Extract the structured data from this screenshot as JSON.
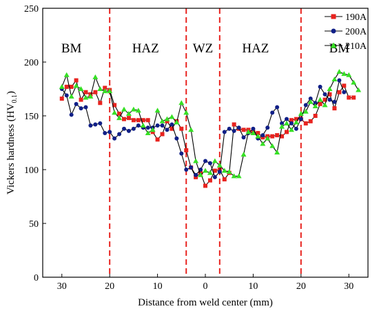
{
  "chart_data": {
    "type": "line",
    "xlabel": "Distance from weld center (mm)",
    "ylabel_main": "Vickers hardness (HV",
    "ylabel_sub": "0.1",
    "ylabel_close": ")",
    "x_domain": [
      -34,
      34
    ],
    "ylim": [
      0,
      250
    ],
    "x_ticks": [
      -30,
      -20,
      -10,
      0,
      10,
      20,
      30
    ],
    "x_tick_labels": [
      "30",
      "20",
      "10",
      "0",
      "10",
      "20",
      "30"
    ],
    "y_ticks": [
      0,
      50,
      100,
      150,
      200,
      250
    ],
    "y_tick_labels": [
      "0",
      "50",
      "100",
      "150",
      "200",
      "250"
    ],
    "boundaries": [
      -20,
      -4,
      3,
      20
    ],
    "boundary_color": "#e8231f",
    "regions": [
      {
        "label": "BM",
        "x": -28
      },
      {
        "label": "HAZ",
        "x": -12.5
      },
      {
        "label": "WZ",
        "x": -0.5
      },
      {
        "label": "HAZ",
        "x": 10.5
      },
      {
        "label": "BM",
        "x": 28
      }
    ],
    "legend_position": "top-right",
    "series": [
      {
        "name": "190A",
        "color": "#e8231f",
        "marker": "square",
        "points": [
          [
            -30,
            166
          ],
          [
            -29,
            177
          ],
          [
            -28,
            177
          ],
          [
            -27,
            183
          ],
          [
            -26,
            165
          ],
          [
            -25,
            172
          ],
          [
            -24,
            170
          ],
          [
            -23,
            172
          ],
          [
            -22,
            162
          ],
          [
            -21,
            176
          ],
          [
            -20,
            174
          ],
          [
            -19,
            160
          ],
          [
            -18,
            152
          ],
          [
            -17,
            147
          ],
          [
            -16,
            148
          ],
          [
            -15,
            146
          ],
          [
            -14,
            146
          ],
          [
            -13,
            146
          ],
          [
            -12,
            146
          ],
          [
            -11,
            135
          ],
          [
            -10,
            128
          ],
          [
            -9,
            133
          ],
          [
            -8,
            145
          ],
          [
            -7,
            138
          ],
          [
            -6,
            145
          ],
          [
            -5,
            138
          ],
          [
            -4,
            118
          ],
          [
            -3,
            102
          ],
          [
            -2,
            93
          ],
          [
            -1,
            97
          ],
          [
            0,
            85
          ],
          [
            1,
            90
          ],
          [
            2,
            99
          ],
          [
            3,
            100
          ],
          [
            4,
            91
          ],
          [
            5,
            97
          ],
          [
            6,
            142
          ],
          [
            7,
            138
          ],
          [
            8,
            137
          ],
          [
            9,
            137
          ],
          [
            10,
            135
          ],
          [
            11,
            134
          ],
          [
            12,
            130
          ],
          [
            13,
            131
          ],
          [
            14,
            131
          ],
          [
            15,
            132
          ],
          [
            16,
            131
          ],
          [
            17,
            135
          ],
          [
            18,
            146
          ],
          [
            19,
            147
          ],
          [
            20,
            147
          ],
          [
            21,
            143
          ],
          [
            22,
            145
          ],
          [
            23,
            150
          ],
          [
            24,
            161
          ],
          [
            25,
            165
          ],
          [
            26,
            170
          ],
          [
            27,
            157
          ],
          [
            28,
            172
          ],
          [
            29,
            178
          ],
          [
            30,
            167
          ],
          [
            31,
            167
          ]
        ]
      },
      {
        "name": "200A",
        "color": "#101f87",
        "marker": "circle",
        "points": [
          [
            -30,
            175
          ],
          [
            -29,
            169
          ],
          [
            -28,
            151
          ],
          [
            -27,
            161
          ],
          [
            -26,
            157
          ],
          [
            -25,
            158
          ],
          [
            -24,
            141
          ],
          [
            -23,
            142
          ],
          [
            -22,
            143
          ],
          [
            -21,
            134
          ],
          [
            -20,
            135
          ],
          [
            -19,
            129
          ],
          [
            -18,
            133
          ],
          [
            -17,
            138
          ],
          [
            -16,
            136
          ],
          [
            -15,
            138
          ],
          [
            -14,
            141
          ],
          [
            -13,
            139
          ],
          [
            -12,
            139
          ],
          [
            -11,
            139
          ],
          [
            -10,
            141
          ],
          [
            -9,
            141
          ],
          [
            -8,
            137
          ],
          [
            -7,
            142
          ],
          [
            -6,
            129
          ],
          [
            -5,
            115
          ],
          [
            -4,
            100
          ],
          [
            -3,
            102
          ],
          [
            -2,
            95
          ],
          [
            -1,
            100
          ],
          [
            0,
            108
          ],
          [
            1,
            106
          ],
          [
            2,
            93
          ],
          [
            3,
            98
          ],
          [
            4,
            135
          ],
          [
            5,
            138
          ],
          [
            6,
            136
          ],
          [
            7,
            139
          ],
          [
            8,
            130
          ],
          [
            9,
            134
          ],
          [
            10,
            138
          ],
          [
            11,
            129
          ],
          [
            12,
            132
          ],
          [
            13,
            139
          ],
          [
            14,
            153
          ],
          [
            15,
            158
          ],
          [
            16,
            143
          ],
          [
            17,
            147
          ],
          [
            18,
            143
          ],
          [
            19,
            138
          ],
          [
            20,
            147
          ],
          [
            21,
            160
          ],
          [
            22,
            166
          ],
          [
            23,
            162
          ],
          [
            24,
            177
          ],
          [
            25,
            170
          ],
          [
            26,
            165
          ],
          [
            27,
            163
          ],
          [
            28,
            183
          ],
          [
            29,
            172
          ]
        ]
      },
      {
        "name": "210A",
        "color": "#36e024",
        "marker": "triangle",
        "points": [
          [
            -30,
            177
          ],
          [
            -29,
            188
          ],
          [
            -28,
            168
          ],
          [
            -27,
            178
          ],
          [
            -26,
            175
          ],
          [
            -25,
            167
          ],
          [
            -24,
            168
          ],
          [
            -23,
            186
          ],
          [
            -22,
            175
          ],
          [
            -21,
            173
          ],
          [
            -20,
            173
          ],
          [
            -19,
            153
          ],
          [
            -18,
            148
          ],
          [
            -17,
            156
          ],
          [
            -16,
            152
          ],
          [
            -15,
            156
          ],
          [
            -14,
            155
          ],
          [
            -13,
            141
          ],
          [
            -12,
            134
          ],
          [
            -11,
            137
          ],
          [
            -10,
            155
          ],
          [
            -9,
            145
          ],
          [
            -8,
            147
          ],
          [
            -7,
            149
          ],
          [
            -6,
            144
          ],
          [
            -5,
            162
          ],
          [
            -4,
            153
          ],
          [
            -3,
            137
          ],
          [
            -2,
            108
          ],
          [
            -1,
            95
          ],
          [
            0,
            99
          ],
          [
            1,
            97
          ],
          [
            2,
            108
          ],
          [
            3,
            104
          ],
          [
            4,
            99
          ],
          [
            5,
            98
          ],
          [
            6,
            94
          ],
          [
            7,
            94
          ],
          [
            8,
            114
          ],
          [
            9,
            135
          ],
          [
            10,
            134
          ],
          [
            11,
            131
          ],
          [
            12,
            124
          ],
          [
            13,
            129
          ],
          [
            14,
            122
          ],
          [
            15,
            116
          ],
          [
            16,
            140
          ],
          [
            17,
            143
          ],
          [
            18,
            137
          ],
          [
            19,
            144
          ],
          [
            20,
            152
          ],
          [
            21,
            154
          ],
          [
            22,
            163
          ],
          [
            23,
            159
          ],
          [
            24,
            165
          ],
          [
            25,
            160
          ],
          [
            26,
            175
          ],
          [
            27,
            184
          ],
          [
            28,
            191
          ],
          [
            29,
            189
          ],
          [
            30,
            188
          ],
          [
            31,
            181
          ],
          [
            32,
            174
          ]
        ]
      }
    ]
  }
}
